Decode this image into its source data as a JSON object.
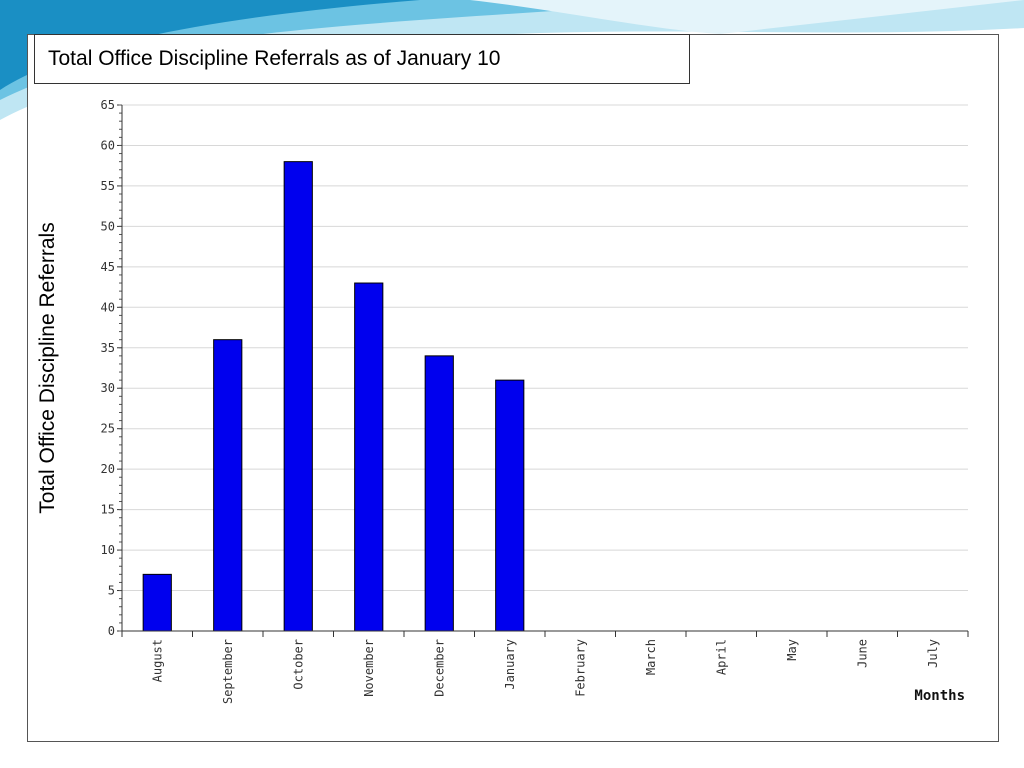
{
  "slide": {
    "background": "#ffffff",
    "wave_colors": [
      "#1a8fc4",
      "#6cc3e3",
      "#bfe6f3"
    ]
  },
  "chart_data": {
    "type": "bar",
    "title": "Total Office Discipline Referrals as of January 10",
    "xlabel": "Months",
    "ylabel": "Total Office Discipline Referrals",
    "categories": [
      "August",
      "September",
      "October",
      "November",
      "December",
      "January",
      "February",
      "March",
      "April",
      "May",
      "June",
      "July"
    ],
    "values": [
      7,
      36,
      58,
      43,
      34,
      31,
      null,
      null,
      null,
      null,
      null,
      null
    ],
    "ylim": [
      0,
      65
    ],
    "yticks": [
      "0",
      "5",
      "10",
      "15",
      "20",
      "25",
      "30",
      "35",
      "40",
      "45",
      "50",
      "55",
      "60",
      "65"
    ],
    "grid": true,
    "bar_color": "#0000ee",
    "bar_edge_color": "#000000"
  }
}
